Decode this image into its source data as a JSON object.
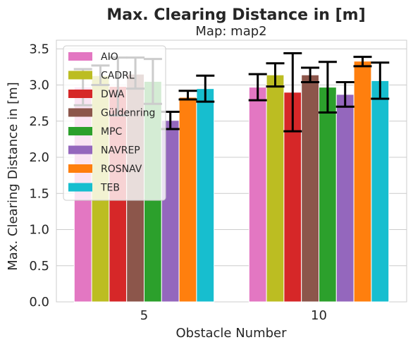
{
  "chart_data": {
    "type": "bar",
    "title": "Max. Clearing Distance in [m]",
    "subtitle": "Map: map2",
    "xlabel": "Obstacle Number",
    "ylabel": "Max. Clearing Distance in [m]",
    "categories": [
      "5",
      "10"
    ],
    "ylim": [
      0,
      3.62
    ],
    "yticks": [
      0.0,
      0.5,
      1.0,
      1.5,
      2.0,
      2.5,
      3.0,
      3.5
    ],
    "ytick_labels": [
      "0.0",
      "0.5",
      "1.0",
      "1.5",
      "2.0",
      "2.5",
      "3.0",
      "3.5"
    ],
    "grid": true,
    "legend_position": "top-left",
    "series": [
      {
        "name": "AIO",
        "color": "#e377c2",
        "values": [
          2.97,
          2.97
        ],
        "err_low": [
          2.72,
          2.79
        ],
        "err_high": [
          3.22,
          3.15
        ]
      },
      {
        "name": "CADRL",
        "color": "#bcbd22",
        "values": [
          3.13,
          3.14
        ],
        "err_low": [
          3.0,
          2.98
        ],
        "err_high": [
          3.27,
          3.3
        ]
      },
      {
        "name": "DWA",
        "color": "#d62728",
        "values": [
          2.98,
          2.9
        ],
        "err_low": [
          2.58,
          2.36
        ],
        "err_high": [
          3.38,
          3.44
        ]
      },
      {
        "name": "Güldenring",
        "color": "#8c564b",
        "values": [
          3.15,
          3.14
        ],
        "err_low": [
          2.95,
          3.04
        ],
        "err_high": [
          3.38,
          3.24
        ]
      },
      {
        "name": "MPC",
        "color": "#2ca02c",
        "values": [
          3.05,
          2.97
        ],
        "err_low": [
          2.74,
          2.62
        ],
        "err_high": [
          3.36,
          3.32
        ]
      },
      {
        "name": "NAVREP",
        "color": "#9467bd",
        "values": [
          2.51,
          2.87
        ],
        "err_low": [
          2.39,
          2.7
        ],
        "err_high": [
          2.63,
          3.04
        ]
      },
      {
        "name": "ROSNAV",
        "color": "#ff7f0e",
        "values": [
          2.83,
          3.33
        ],
        "err_low": [
          2.8,
          3.26
        ],
        "err_high": [
          2.92,
          3.39
        ]
      },
      {
        "name": "TEB",
        "color": "#17becf",
        "values": [
          2.95,
          3.06
        ],
        "err_low": [
          2.77,
          2.81
        ],
        "err_high": [
          3.13,
          3.31
        ]
      }
    ]
  }
}
